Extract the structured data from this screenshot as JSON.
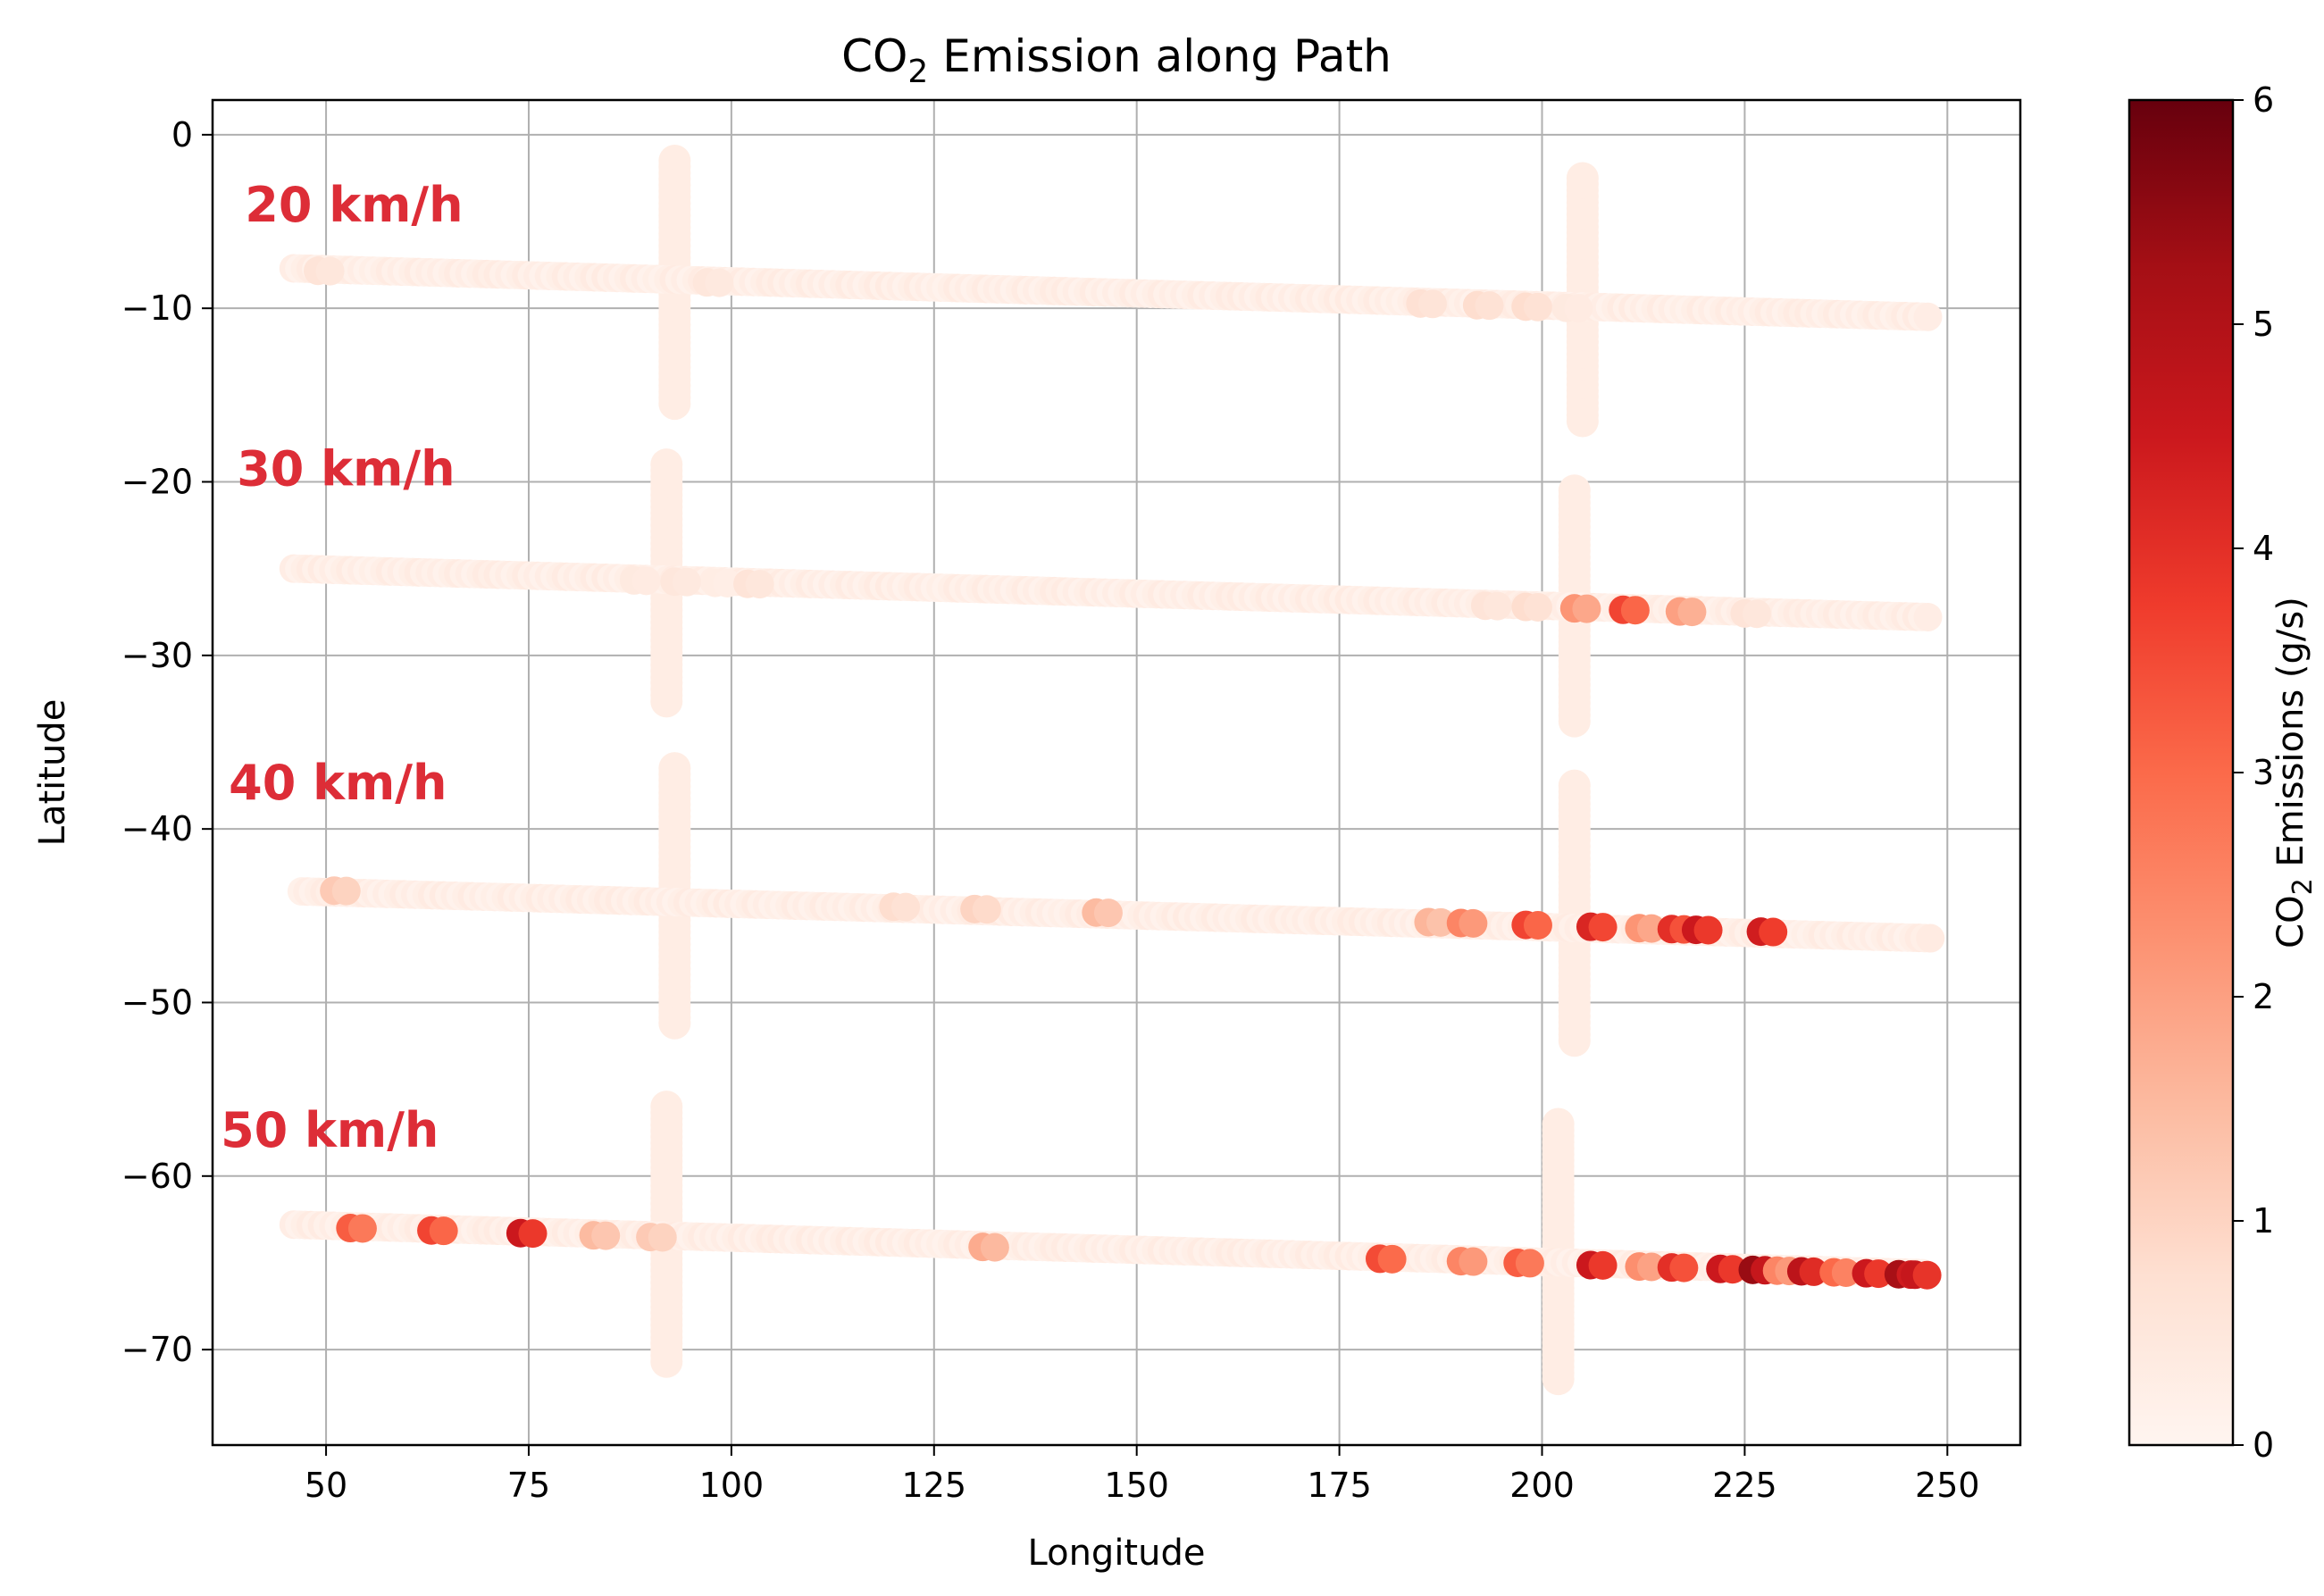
{
  "chart_data": {
    "type": "scatter",
    "title": {
      "main": "CO",
      "sub": "2",
      "rest": " Emission along Path"
    },
    "xlabel": "Longitude",
    "ylabel": "Latitude",
    "xlim": [
      36,
      259
    ],
    "ylim": [
      -75.5,
      2
    ],
    "xticks": [
      50,
      75,
      100,
      125,
      150,
      175,
      200,
      225,
      250
    ],
    "yticks": [
      0,
      -10,
      -20,
      -30,
      -40,
      -50,
      -60,
      -70
    ],
    "xtick_labels": [
      "50",
      "75",
      "100",
      "125",
      "150",
      "175",
      "200",
      "225",
      "250"
    ],
    "ytick_labels": [
      "0",
      "−10",
      "−20",
      "−30",
      "−40",
      "−50",
      "−60",
      "−70"
    ],
    "grid": true,
    "colormap": "Reds",
    "color_stops": [
      "#fff5f0",
      "#fee0d2",
      "#fcbba1",
      "#fc9272",
      "#fb6a4a",
      "#ef3b2c",
      "#cb181d",
      "#a50f15",
      "#67000d"
    ],
    "colorbar": {
      "label": {
        "main": "CO",
        "sub": "2",
        "rest": " Emissions (g/s)"
      },
      "range": [
        0,
        6
      ],
      "ticks": [
        0,
        1,
        2,
        3,
        4,
        5,
        6
      ],
      "tick_labels": [
        "0",
        "1",
        "2",
        "3",
        "4",
        "5",
        "6"
      ]
    },
    "annotations": [
      "20 km/h",
      "30 km/h",
      "40 km/h",
      "50 km/h"
    ],
    "paths": [
      {
        "name": "20 km/h",
        "label_at": [
          40,
          -5
        ],
        "start": [
          46,
          -7.8
        ],
        "end": [
          248,
          -10.6
        ],
        "background_level": 0.1,
        "highlights": [
          {
            "lon": 49,
            "val": 0.6
          },
          {
            "lon": 97,
            "val": 0.5
          },
          {
            "lon": 185,
            "val": 0.7
          },
          {
            "lon": 192,
            "val": 0.8
          },
          {
            "lon": 198,
            "val": 0.8
          },
          {
            "lon": 203,
            "val": 0.4
          }
        ],
        "crossings": [
          {
            "lon": 93,
            "lat_top": -1.5,
            "lat_bottom": -15.5
          },
          {
            "lon": 205,
            "lat_top": -2.5,
            "lat_bottom": -16.5
          }
        ]
      },
      {
        "name": "30 km/h",
        "label_at": [
          39,
          -20.2
        ],
        "start": [
          46,
          -25.1
        ],
        "end": [
          248,
          -27.9
        ],
        "background_level": 0.1,
        "highlights": [
          {
            "lon": 88,
            "val": 0.4
          },
          {
            "lon": 93,
            "val": 0.5
          },
          {
            "lon": 98,
            "val": 0.3
          },
          {
            "lon": 102,
            "val": 0.6
          },
          {
            "lon": 193,
            "val": 0.6
          },
          {
            "lon": 198,
            "val": 0.8
          },
          {
            "lon": 204,
            "val": 2.2
          },
          {
            "lon": 210,
            "val": 3.6
          },
          {
            "lon": 217,
            "val": 2.0
          },
          {
            "lon": 225,
            "val": 0.6
          }
        ],
        "crossings": [
          {
            "lon": 92,
            "lat_top": -19,
            "lat_bottom": -33
          },
          {
            "lon": 204,
            "lat_top": -20.5,
            "lat_bottom": -34
          }
        ]
      },
      {
        "name": "40 km/h",
        "label_at": [
          38,
          -38.3
        ],
        "start": [
          47,
          -43.5
        ],
        "end": [
          248,
          -46.2
        ],
        "background_level": 0.1,
        "highlights": [
          {
            "lon": 51,
            "val": 1.2
          },
          {
            "lon": 120,
            "val": 0.8
          },
          {
            "lon": 130,
            "val": 1.0
          },
          {
            "lon": 145,
            "val": 1.5
          },
          {
            "lon": 186,
            "val": 1.6
          },
          {
            "lon": 190,
            "val": 2.5
          },
          {
            "lon": 198,
            "val": 3.6
          },
          {
            "lon": 206,
            "val": 4.2
          },
          {
            "lon": 212,
            "val": 2.2
          },
          {
            "lon": 216,
            "val": 4.0
          },
          {
            "lon": 219,
            "val": 4.5
          },
          {
            "lon": 227,
            "val": 4.4
          }
        ],
        "crossings": [
          {
            "lon": 93,
            "lat_top": -36.5,
            "lat_bottom": -51.5
          },
          {
            "lon": 204,
            "lat_top": -37.5,
            "lat_bottom": -52.5
          }
        ]
      },
      {
        "name": "50 km/h",
        "label_at": [
          37,
          -58.3
        ],
        "start": [
          46,
          -62.9
        ],
        "end": [
          247,
          -65.7
        ],
        "background_level": 0.1,
        "highlights": [
          {
            "lon": 53,
            "val": 3.2
          },
          {
            "lon": 63,
            "val": 3.6
          },
          {
            "lon": 74,
            "val": 4.5
          },
          {
            "lon": 83,
            "val": 1.5
          },
          {
            "lon": 90,
            "val": 1.2
          },
          {
            "lon": 131,
            "val": 1.8
          },
          {
            "lon": 180,
            "val": 3.5
          },
          {
            "lon": 190,
            "val": 2.5
          },
          {
            "lon": 197,
            "val": 3.2
          },
          {
            "lon": 206,
            "val": 4.5
          },
          {
            "lon": 212,
            "val": 2.3
          },
          {
            "lon": 216,
            "val": 4.0
          },
          {
            "lon": 222,
            "val": 4.5
          },
          {
            "lon": 226,
            "val": 5.4
          },
          {
            "lon": 229,
            "val": 2.5
          },
          {
            "lon": 232,
            "val": 4.8
          },
          {
            "lon": 236,
            "val": 3.0
          },
          {
            "lon": 240,
            "val": 4.5
          },
          {
            "lon": 244,
            "val": 5.2
          },
          {
            "lon": 246,
            "val": 4.6
          }
        ],
        "crossings": [
          {
            "lon": 92,
            "lat_top": -56,
            "lat_bottom": -71
          },
          {
            "lon": 202,
            "lat_top": -57,
            "lat_bottom": -72
          }
        ]
      }
    ]
  }
}
